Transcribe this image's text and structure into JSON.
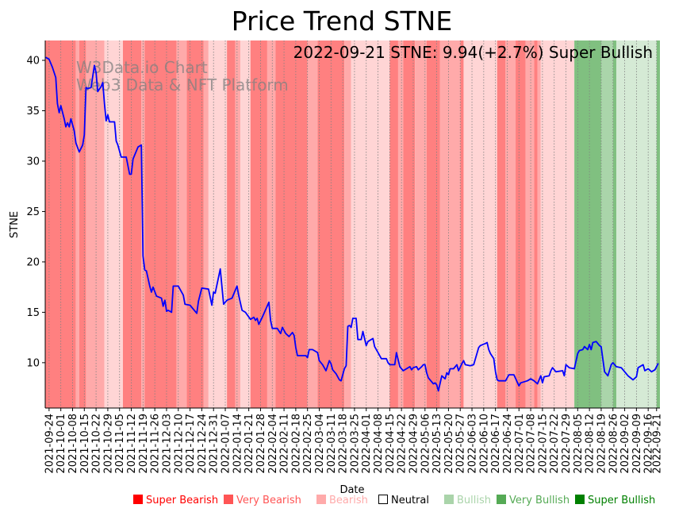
{
  "chart_data": {
    "type": "line",
    "title": "Price Trend STNE",
    "annotation": "2022-09-21 STNE: 9.94(+2.7%) Super Bullish",
    "watermark": [
      "W3Data.io Chart",
      "Web3 Data & NFT Platform"
    ],
    "xlabel": "Date",
    "ylabel": "STNE",
    "ylim": [
      5.5,
      41.97
    ],
    "yticks": [
      10,
      15,
      20,
      25,
      30,
      35,
      40
    ],
    "x_range_days_since_2021_09_22": [
      -0.3,
      366
    ],
    "grid": "vertical dotted at x ticks",
    "legend_position": "bottom",
    "xtick_labels": [
      "2021-09-24",
      "2021-10-01",
      "2021-10-08",
      "2021-10-15",
      "2021-10-22",
      "2021-10-29",
      "2021-11-05",
      "2021-11-12",
      "2021-11-19",
      "2021-11-26",
      "2021-12-03",
      "2021-12-10",
      "2021-12-17",
      "2021-12-24",
      "2021-12-31",
      "2022-01-07",
      "2022-01-14",
      "2022-01-21",
      "2022-01-28",
      "2022-02-04",
      "2022-02-11",
      "2022-02-18",
      "2022-02-25",
      "2022-03-04",
      "2022-03-11",
      "2022-03-18",
      "2022-03-25",
      "2022-04-01",
      "2022-04-08",
      "2022-04-15",
      "2022-04-22",
      "2022-04-29",
      "2022-05-06",
      "2022-05-13",
      "2022-05-20",
      "2022-05-27",
      "2022-06-03",
      "2022-06-10",
      "2022-06-17",
      "2022-06-24",
      "2022-07-01",
      "2022-07-08",
      "2022-07-15",
      "2022-07-22",
      "2022-07-29",
      "2022-08-05",
      "2022-08-12",
      "2022-08-19",
      "2022-08-26",
      "2022-09-02",
      "2022-09-09",
      "2022-09-16",
      "2022-09-21"
    ],
    "series": [
      {
        "name": "STNE",
        "color": "#0000ff",
        "points_days_since_2021_09_22": [
          [
            0,
            40.3
          ],
          [
            2,
            40.1
          ],
          [
            4,
            39.3
          ],
          [
            6,
            38.3
          ],
          [
            7,
            35.7
          ],
          [
            8,
            34.8
          ],
          [
            9,
            35.5
          ],
          [
            11,
            34.2
          ],
          [
            12,
            33.4
          ],
          [
            13,
            33.8
          ],
          [
            14,
            33.4
          ],
          [
            15,
            34.2
          ],
          [
            17,
            33.0
          ],
          [
            18,
            31.8
          ],
          [
            20,
            30.9
          ],
          [
            22,
            31.6
          ],
          [
            23,
            32.6
          ],
          [
            24,
            37.3
          ],
          [
            25,
            37.2
          ],
          [
            27,
            37.3
          ],
          [
            29,
            39.5
          ],
          [
            30,
            38.8
          ],
          [
            31,
            36.9
          ],
          [
            33,
            37.4
          ],
          [
            34,
            37.8
          ],
          [
            35,
            35.7
          ],
          [
            36,
            34.0
          ],
          [
            37,
            34.6
          ],
          [
            38,
            33.9
          ],
          [
            41,
            33.9
          ],
          [
            42,
            32.0
          ],
          [
            43,
            31.6
          ],
          [
            45,
            30.4
          ],
          [
            48,
            30.4
          ],
          [
            50,
            28.7
          ],
          [
            51,
            28.7
          ],
          [
            52,
            30.2
          ],
          [
            55,
            31.4
          ],
          [
            57,
            31.6
          ],
          [
            58,
            20.6
          ],
          [
            59,
            19.2
          ],
          [
            60,
            19.1
          ],
          [
            62,
            17.6
          ],
          [
            63,
            17.0
          ],
          [
            64,
            17.5
          ],
          [
            66,
            16.6
          ],
          [
            69,
            16.4
          ],
          [
            70,
            15.6
          ],
          [
            71,
            16.2
          ],
          [
            72,
            15.1
          ],
          [
            73,
            15.2
          ],
          [
            75,
            15.0
          ],
          [
            76,
            17.6
          ],
          [
            77,
            17.6
          ],
          [
            79,
            17.6
          ],
          [
            82,
            16.7
          ],
          [
            83,
            15.8
          ],
          [
            86,
            15.7
          ],
          [
            90,
            14.9
          ],
          [
            91,
            16.1
          ],
          [
            93,
            17.4
          ],
          [
            97,
            17.3
          ],
          [
            99,
            15.7
          ],
          [
            100,
            17.0
          ],
          [
            101,
            16.9
          ],
          [
            104,
            19.3
          ],
          [
            106,
            15.8
          ],
          [
            108,
            16.2
          ],
          [
            111,
            16.4
          ],
          [
            113,
            17.2
          ],
          [
            114,
            17.6
          ],
          [
            115,
            16.7
          ],
          [
            117,
            15.2
          ],
          [
            119,
            15.0
          ],
          [
            122,
            14.3
          ],
          [
            124,
            14.5
          ],
          [
            125,
            14.2
          ],
          [
            126,
            14.4
          ],
          [
            127,
            13.8
          ],
          [
            129,
            14.5
          ],
          [
            133,
            16.0
          ],
          [
            134,
            14.2
          ],
          [
            135,
            13.4
          ],
          [
            138,
            13.4
          ],
          [
            140,
            12.9
          ],
          [
            141,
            13.5
          ],
          [
            142,
            13.2
          ],
          [
            143,
            12.9
          ],
          [
            145,
            12.6
          ],
          [
            147,
            13.0
          ],
          [
            148,
            12.7
          ],
          [
            149,
            11.5
          ],
          [
            150,
            10.7
          ],
          [
            154,
            10.7
          ],
          [
            155,
            10.7
          ],
          [
            156,
            10.5
          ],
          [
            157,
            11.3
          ],
          [
            159,
            11.3
          ],
          [
            161,
            11.1
          ],
          [
            162,
            11.0
          ],
          [
            163,
            10.2
          ],
          [
            165,
            9.8
          ],
          [
            167,
            9.2
          ],
          [
            169,
            10.2
          ],
          [
            170,
            9.9
          ],
          [
            171,
            9.3
          ],
          [
            173,
            8.9
          ],
          [
            175,
            8.3
          ],
          [
            176,
            8.2
          ],
          [
            178,
            9.4
          ],
          [
            179,
            9.7
          ],
          [
            180,
            13.6
          ],
          [
            181,
            13.7
          ],
          [
            182,
            13.5
          ],
          [
            183,
            14.4
          ],
          [
            185,
            14.4
          ],
          [
            186,
            12.3
          ],
          [
            188,
            12.3
          ],
          [
            189,
            13.1
          ],
          [
            191,
            11.7
          ],
          [
            192,
            12.1
          ],
          [
            195,
            12.4
          ],
          [
            196,
            11.6
          ],
          [
            198,
            11.0
          ],
          [
            199,
            10.7
          ],
          [
            200,
            10.4
          ],
          [
            203,
            10.4
          ],
          [
            204,
            10.0
          ],
          [
            205,
            9.8
          ],
          [
            208,
            9.8
          ],
          [
            209,
            11.0
          ],
          [
            211,
            9.6
          ],
          [
            213,
            9.2
          ],
          [
            215,
            9.4
          ],
          [
            217,
            9.6
          ],
          [
            218,
            9.3
          ],
          [
            219,
            9.5
          ],
          [
            221,
            9.6
          ],
          [
            222,
            9.3
          ],
          [
            224,
            9.6
          ],
          [
            225,
            9.8
          ],
          [
            226,
            9.8
          ],
          [
            227,
            9.0
          ],
          [
            228,
            8.5
          ],
          [
            231,
            7.9
          ],
          [
            232,
            8.0
          ],
          [
            233,
            7.8
          ],
          [
            234,
            7.2
          ],
          [
            236,
            8.7
          ],
          [
            238,
            8.4
          ],
          [
            239,
            9.0
          ],
          [
            240,
            8.8
          ],
          [
            241,
            9.4
          ],
          [
            243,
            9.4
          ],
          [
            245,
            9.8
          ],
          [
            246,
            9.2
          ],
          [
            248,
            9.9
          ],
          [
            249,
            10.2
          ],
          [
            250,
            9.8
          ],
          [
            253,
            9.7
          ],
          [
            255,
            9.8
          ],
          [
            258,
            11.5
          ],
          [
            259,
            11.7
          ],
          [
            262,
            11.9
          ],
          [
            263,
            12.0
          ],
          [
            264,
            11.3
          ],
          [
            265,
            10.9
          ],
          [
            267,
            10.4
          ],
          [
            268,
            9.1
          ],
          [
            269,
            8.3
          ],
          [
            270,
            8.2
          ],
          [
            274,
            8.2
          ],
          [
            276,
            8.8
          ],
          [
            279,
            8.8
          ],
          [
            282,
            7.7
          ],
          [
            283,
            8.0
          ],
          [
            287,
            8.2
          ],
          [
            289,
            8.4
          ],
          [
            291,
            8.2
          ],
          [
            293,
            7.9
          ],
          [
            295,
            8.7
          ],
          [
            296,
            8.0
          ],
          [
            297,
            8.6
          ],
          [
            300,
            8.7
          ],
          [
            301,
            9.2
          ],
          [
            302,
            9.5
          ],
          [
            304,
            9.1
          ],
          [
            308,
            9.2
          ],
          [
            309,
            8.7
          ],
          [
            310,
            9.8
          ],
          [
            312,
            9.5
          ],
          [
            315,
            9.4
          ],
          [
            317,
            10.9
          ],
          [
            318,
            11.2
          ],
          [
            320,
            11.3
          ],
          [
            321,
            11.6
          ],
          [
            323,
            11.3
          ],
          [
            324,
            11.8
          ],
          [
            325,
            11.3
          ],
          [
            326,
            12.0
          ],
          [
            328,
            12.1
          ],
          [
            330,
            11.7
          ],
          [
            331,
            11.6
          ],
          [
            333,
            9.1
          ],
          [
            335,
            8.7
          ],
          [
            337,
            9.8
          ],
          [
            338,
            10.0
          ],
          [
            340,
            9.6
          ],
          [
            343,
            9.5
          ],
          [
            347,
            8.7
          ],
          [
            350,
            8.3
          ],
          [
            352,
            8.6
          ],
          [
            353,
            9.5
          ],
          [
            356,
            9.8
          ],
          [
            357,
            9.2
          ],
          [
            359,
            9.4
          ],
          [
            361,
            9.1
          ],
          [
            363,
            9.3
          ],
          [
            365,
            9.94
          ]
        ]
      }
    ],
    "sentiment_bands_days_since_2021_09_22": [
      [
        -0.3,
        18,
        "super_bearish"
      ],
      [
        18,
        20,
        "very_bearish"
      ],
      [
        20,
        24,
        "super_bearish"
      ],
      [
        24,
        35,
        "very_bearish"
      ],
      [
        35,
        46,
        "bearish"
      ],
      [
        46,
        57,
        "super_bearish"
      ],
      [
        57,
        59,
        "very_bearish"
      ],
      [
        59,
        78,
        "super_bearish"
      ],
      [
        78,
        84,
        "very_bearish"
      ],
      [
        84,
        94,
        "super_bearish"
      ],
      [
        94,
        97,
        "very_bearish"
      ],
      [
        97,
        108,
        "bearish"
      ],
      [
        108,
        113,
        "super_bearish"
      ],
      [
        113,
        116,
        "very_bearish"
      ],
      [
        116,
        122,
        "bearish"
      ],
      [
        122,
        132,
        "super_bearish"
      ],
      [
        132,
        137,
        "very_bearish"
      ],
      [
        137,
        156,
        "super_bearish"
      ],
      [
        156,
        162,
        "very_bearish"
      ],
      [
        162,
        178,
        "super_bearish"
      ],
      [
        178,
        182,
        "very_bearish"
      ],
      [
        182,
        205,
        "bearish"
      ],
      [
        205,
        210,
        "super_bearish"
      ],
      [
        210,
        213,
        "very_bearish"
      ],
      [
        213,
        220,
        "super_bearish"
      ],
      [
        220,
        227,
        "very_bearish"
      ],
      [
        227,
        235,
        "super_bearish"
      ],
      [
        235,
        247,
        "very_bearish"
      ],
      [
        247,
        249,
        "super_bearish"
      ],
      [
        249,
        269,
        "bearish"
      ],
      [
        269,
        274,
        "super_bearish"
      ],
      [
        274,
        280,
        "very_bearish"
      ],
      [
        280,
        286,
        "super_bearish"
      ],
      [
        286,
        291,
        "very_bearish"
      ],
      [
        291,
        293,
        "super_bearish"
      ],
      [
        293,
        295,
        "very_bearish"
      ],
      [
        295,
        315,
        "bearish"
      ],
      [
        315,
        331,
        "super_bullish"
      ],
      [
        331,
        338,
        "very_bullish"
      ],
      [
        338,
        340,
        "super_bullish"
      ],
      [
        340,
        364,
        "bullish"
      ],
      [
        364,
        366,
        "super_bullish"
      ]
    ],
    "legend": [
      {
        "key": "super_bearish",
        "label": "Super Bearish",
        "color": "#ff0000"
      },
      {
        "key": "very_bearish",
        "label": "Very Bearish",
        "color": "#ff5555"
      },
      {
        "key": "bearish",
        "label": "Bearish",
        "color": "#ffaaaa"
      },
      {
        "key": "neutral",
        "label": "Neutral",
        "color": "#000000"
      },
      {
        "key": "bullish",
        "label": "Bullish",
        "color": "#aad4aa"
      },
      {
        "key": "very_bullish",
        "label": "Very Bullish",
        "color": "#55aa55"
      },
      {
        "key": "super_bullish",
        "label": "Super Bullish",
        "color": "#008000"
      }
    ]
  }
}
